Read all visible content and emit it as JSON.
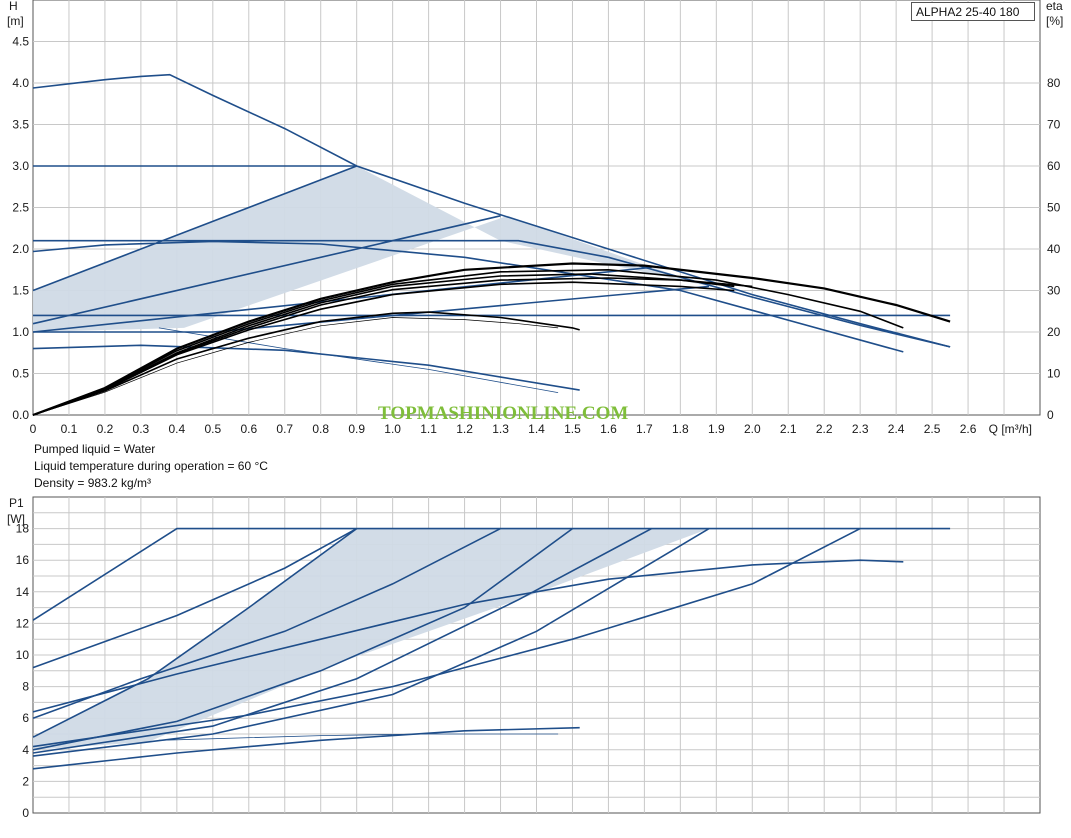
{
  "model_label": "ALPHA2 25-40 180",
  "watermark": "TOPMASHINIONLINE.COM",
  "info_lines": [
    "Pumped liquid = Water",
    "Liquid temperature during operation = 60 °C",
    "Density = 983.2 kg/m³"
  ],
  "colors": {
    "curve": "#1f4e8a",
    "eta": "#000000",
    "fill": "#d0dae6",
    "grid": "#c8c8c8",
    "watermark": "#7fbe3a"
  },
  "chart_data": [
    {
      "type": "line",
      "title": "",
      "xlabel": "Q [m³/h]",
      "ylabel_line1": "H",
      "ylabel_line2": "[m]",
      "y2label_line1": "eta",
      "y2label_line2": "[%]",
      "xlim": [
        0,
        2.8
      ],
      "ylim": [
        0,
        5.0
      ],
      "y2lim": [
        0,
        100
      ],
      "x_ticks": [
        "0",
        "0.1",
        "0.2",
        "0.3",
        "0.4",
        "0.5",
        "0.6",
        "0.7",
        "0.8",
        "0.9",
        "1.0",
        "1.1",
        "1.2",
        "1.3",
        "1.4",
        "1.5",
        "1.6",
        "1.7",
        "1.8",
        "1.9",
        "2.0",
        "2.1",
        "2.2",
        "2.3",
        "2.4",
        "2.5",
        "2.6"
      ],
      "y_ticks": [
        "0.0",
        "0.5",
        "1.0",
        "1.5",
        "2.0",
        "2.5",
        "3.0",
        "3.5",
        "4.0",
        "4.5"
      ],
      "y2_ticks": [
        "0",
        "10",
        "20",
        "30",
        "40",
        "50",
        "60",
        "70",
        "80"
      ],
      "grid": true,
      "shaded_region": [
        [
          0,
          1.5
        ],
        [
          0.9,
          3.0
        ],
        [
          1.3,
          2.1
        ],
        [
          1.88,
          1.55
        ],
        [
          1.72,
          1.78
        ],
        [
          1.32,
          2.4
        ],
        [
          0.42,
          1.05
        ],
        [
          0,
          1.0
        ]
      ],
      "head_series": [
        {
          "points": [
            [
              0,
              3.94
            ],
            [
              0.1,
              3.99
            ],
            [
              0.2,
              4.04
            ],
            [
              0.3,
              4.08
            ],
            [
              0.38,
              4.1
            ],
            [
              0.5,
              3.85
            ],
            [
              0.7,
              3.45
            ],
            [
              0.9,
              3.0
            ],
            [
              1.2,
              2.55
            ],
            [
              1.6,
              2.0
            ],
            [
              2.0,
              1.45
            ],
            [
              2.3,
              1.1
            ],
            [
              2.55,
              0.82
            ]
          ]
        },
        {
          "points": [
            [
              0,
              3.0
            ],
            [
              0.9,
              3.0
            ]
          ]
        },
        {
          "points": [
            [
              0,
              1.5
            ],
            [
              0.9,
              3.0
            ]
          ]
        },
        {
          "points": [
            [
              0,
              2.1
            ],
            [
              1.35,
              2.1
            ],
            [
              1.6,
              1.9
            ],
            [
              2.0,
              1.42
            ],
            [
              2.3,
              1.08
            ],
            [
              2.55,
              0.82
            ]
          ]
        },
        {
          "points": [
            [
              0,
              1.97
            ],
            [
              0.2,
              2.05
            ],
            [
              0.5,
              2.09
            ],
            [
              0.8,
              2.06
            ],
            [
              1.2,
              1.9
            ],
            [
              1.8,
              1.5
            ],
            [
              2.42,
              0.76
            ]
          ]
        },
        {
          "points": [
            [
              0,
              1.1
            ],
            [
              1.3,
              2.4
            ]
          ]
        },
        {
          "points": [
            [
              0,
              1.0
            ],
            [
              1.72,
              1.78
            ]
          ]
        },
        {
          "points": [
            [
              0,
              1.0
            ],
            [
              0.5,
              1.0
            ],
            [
              1.88,
              1.55
            ]
          ]
        },
        {
          "points": [
            [
              0,
              1.2
            ],
            [
              2.55,
              1.2
            ]
          ]
        },
        {
          "points": [
            [
              0,
              0.8
            ],
            [
              0.3,
              0.84
            ],
            [
              0.7,
              0.78
            ],
            [
              1.1,
              0.6
            ],
            [
              1.52,
              0.3
            ]
          ]
        },
        {
          "points": [
            [
              0.35,
              1.05
            ],
            [
              0.7,
              0.8
            ],
            [
              1.1,
              0.55
            ],
            [
              1.46,
              0.27
            ]
          ]
        }
      ],
      "eta_series": [
        {
          "points": [
            [
              0,
              0
            ],
            [
              0.2,
              6.5
            ],
            [
              0.4,
              16
            ],
            [
              0.6,
              22.5
            ],
            [
              0.8,
              28
            ],
            [
              1.0,
              32
            ],
            [
              1.2,
              35
            ],
            [
              1.5,
              36.5
            ],
            [
              1.7,
              36
            ],
            [
              2.0,
              33
            ],
            [
              2.2,
              30.5
            ],
            [
              2.4,
              26.5
            ],
            [
              2.55,
              22.5
            ]
          ]
        },
        {
          "points": [
            [
              0,
              0
            ],
            [
              0.2,
              6.5
            ],
            [
              0.4,
              15.5
            ],
            [
              0.6,
              22
            ],
            [
              0.8,
              27.5
            ],
            [
              1.0,
              31.5
            ],
            [
              1.3,
              34.5
            ],
            [
              1.6,
              35
            ],
            [
              1.9,
              32.5
            ],
            [
              2.1,
              29
            ],
            [
              2.3,
              25
            ],
            [
              2.42,
              21
            ]
          ]
        },
        {
          "points": [
            [
              0,
              0
            ],
            [
              0.2,
              6.3
            ],
            [
              0.4,
              15
            ],
            [
              0.6,
              21.5
            ],
            [
              0.8,
              27
            ],
            [
              1.0,
              31
            ],
            [
              1.3,
              33.5
            ],
            [
              1.55,
              34
            ],
            [
              1.8,
              32.5
            ],
            [
              1.95,
              31
            ]
          ]
        },
        {
          "points": [
            [
              0,
              0
            ],
            [
              0.2,
              6.2
            ],
            [
              0.4,
              14.8
            ],
            [
              0.6,
              21
            ],
            [
              0.8,
              26.5
            ],
            [
              1.0,
              30.2
            ],
            [
              1.3,
              32.5
            ],
            [
              1.6,
              33
            ],
            [
              1.8,
              32.5
            ],
            [
              2.0,
              31
            ]
          ]
        },
        {
          "points": [
            [
              0,
              0
            ],
            [
              0.2,
              6
            ],
            [
              0.4,
              14.5
            ],
            [
              0.6,
              20.5
            ],
            [
              0.8,
              25.5
            ],
            [
              1.0,
              29
            ],
            [
              1.3,
              31.5
            ],
            [
              1.5,
              32
            ],
            [
              1.8,
              31
            ],
            [
              1.95,
              30
            ]
          ]
        },
        {
          "points": [
            [
              0,
              0
            ],
            [
              0.2,
              5.8
            ],
            [
              0.4,
              13.5
            ],
            [
              0.6,
              18.5
            ],
            [
              0.8,
              22.5
            ],
            [
              1.0,
              24.5
            ],
            [
              1.1,
              24.8
            ],
            [
              1.3,
              23.5
            ],
            [
              1.5,
              21
            ],
            [
              1.52,
              20.5
            ]
          ]
        },
        {
          "points": [
            [
              0,
              0
            ],
            [
              0.2,
              5.5
            ],
            [
              0.4,
              12.5
            ],
            [
              0.6,
              17.5
            ],
            [
              0.8,
              21.5
            ],
            [
              1.0,
              23.5
            ],
            [
              1.2,
              23
            ],
            [
              1.35,
              22
            ],
            [
              1.46,
              21
            ]
          ]
        }
      ]
    },
    {
      "type": "line",
      "title": "",
      "xlabel": "",
      "ylabel_line1": "P1",
      "ylabel_line2": "[W]",
      "xlim": [
        0,
        2.8
      ],
      "ylim": [
        0,
        20
      ],
      "y_ticks": [
        "0",
        "2",
        "4",
        "6",
        "8",
        "10",
        "12",
        "14",
        "16",
        "18"
      ],
      "grid": true,
      "shaded_region": [
        [
          0,
          4.0
        ],
        [
          0.32,
          4.5
        ],
        [
          0.85,
          9.5
        ],
        [
          1.35,
          13.5
        ],
        [
          1.88,
          18.0
        ],
        [
          0.9,
          18.0
        ],
        [
          0.6,
          13.0
        ],
        [
          0.32,
          8.5
        ],
        [
          0,
          4.8
        ]
      ],
      "power_series": [
        {
          "points": [
            [
              0,
              12.2
            ],
            [
              0.4,
              18.0
            ],
            [
              2.55,
              18.0
            ]
          ]
        },
        {
          "points": [
            [
              0,
              9.2
            ],
            [
              0.4,
              12.5
            ],
            [
              0.7,
              15.5
            ],
            [
              0.9,
              18.0
            ]
          ]
        },
        {
          "points": [
            [
              0,
              4.8
            ],
            [
              0.32,
              8.5
            ],
            [
              0.6,
              13.0
            ],
            [
              0.9,
              18.0
            ]
          ]
        },
        {
          "points": [
            [
              0,
              6.0
            ],
            [
              0.3,
              8.5
            ],
            [
              0.7,
              11.5
            ],
            [
              1.0,
              14.5
            ],
            [
              1.3,
              18.0
            ]
          ]
        },
        {
          "points": [
            [
              0,
              4.0
            ],
            [
              0.4,
              5.8
            ],
            [
              0.8,
              9.0
            ],
            [
              1.2,
              13.0
            ],
            [
              1.5,
              18.0
            ]
          ]
        },
        {
          "points": [
            [
              0,
              3.8
            ],
            [
              0.5,
              5.5
            ],
            [
              0.9,
              8.5
            ],
            [
              1.35,
              13.5
            ],
            [
              1.72,
              18.0
            ]
          ]
        },
        {
          "points": [
            [
              0,
              3.6
            ],
            [
              0.5,
              5.0
            ],
            [
              1.0,
              7.5
            ],
            [
              1.4,
              11.5
            ],
            [
              1.88,
              18.0
            ]
          ]
        },
        {
          "points": [
            [
              0,
              4.2
            ],
            [
              0.6,
              6.2
            ],
            [
              1.0,
              8.0
            ],
            [
              1.5,
              11.0
            ],
            [
              2.0,
              14.5
            ],
            [
              2.3,
              18.0
            ]
          ]
        },
        {
          "points": [
            [
              0,
              6.4
            ],
            [
              0.4,
              8.8
            ],
            [
              0.8,
              11.0
            ],
            [
              1.2,
              13.2
            ],
            [
              1.6,
              14.8
            ],
            [
              2.0,
              15.7
            ],
            [
              2.3,
              16.0
            ],
            [
              2.42,
              15.9
            ]
          ]
        },
        {
          "points": [
            [
              0,
              2.8
            ],
            [
              0.4,
              3.8
            ],
            [
              0.8,
              4.6
            ],
            [
              1.2,
              5.2
            ],
            [
              1.52,
              5.4
            ]
          ]
        },
        {
          "points": [
            [
              0.35,
              4.6
            ],
            [
              0.8,
              4.9
            ],
            [
              1.1,
              5.0
            ],
            [
              1.46,
              5.0
            ]
          ]
        }
      ]
    }
  ]
}
